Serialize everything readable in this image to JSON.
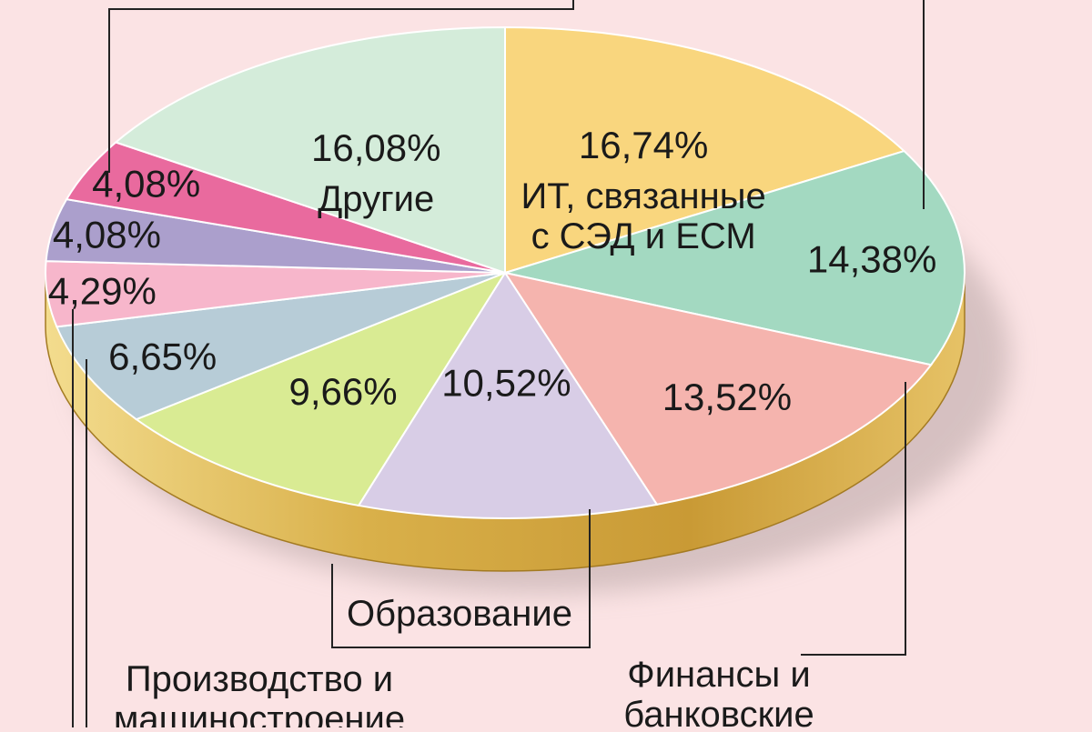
{
  "chart_data": {
    "type": "pie",
    "style": "3d",
    "slices": [
      {
        "value": 16.74,
        "label": "16,74%",
        "category": "ИТ, связанные\nс СЭД и ЕСМ",
        "color": "#f9d67e"
      },
      {
        "value": 14.38,
        "label": "14,38%",
        "category": "",
        "color": "#a3d9c1"
      },
      {
        "value": 13.52,
        "label": "13,52%",
        "category": "Финансы и\nбанковские",
        "color": "#f5b4ae"
      },
      {
        "value": 10.52,
        "label": "10,52%",
        "category": "Образование",
        "color": "#d8cde6"
      },
      {
        "value": 9.66,
        "label": "9,66%",
        "category": "",
        "color": "#d9eb93"
      },
      {
        "value": 6.65,
        "label": "6,65%",
        "category": "Производство и\nмашиностроение",
        "color": "#b7ccd7"
      },
      {
        "value": 4.29,
        "label": "4,29%",
        "category": "",
        "color": "#f7b6cb"
      },
      {
        "value": 4.08,
        "label": "4,08%",
        "category": "",
        "color": "#ab9fcc"
      },
      {
        "value": 4.08,
        "label": "4,08%",
        "category": "",
        "color": "#e96a9e"
      },
      {
        "value": 16.08,
        "label": "16,08%",
        "category": "Другие",
        "color": "#d4ecda"
      }
    ],
    "colors": {
      "background": "#fbe3e4",
      "rim": "#d9b04a",
      "rim_light": "#f3dc8e",
      "rim_dark": "#b8892a",
      "shadow": "#b8a5a5"
    }
  }
}
